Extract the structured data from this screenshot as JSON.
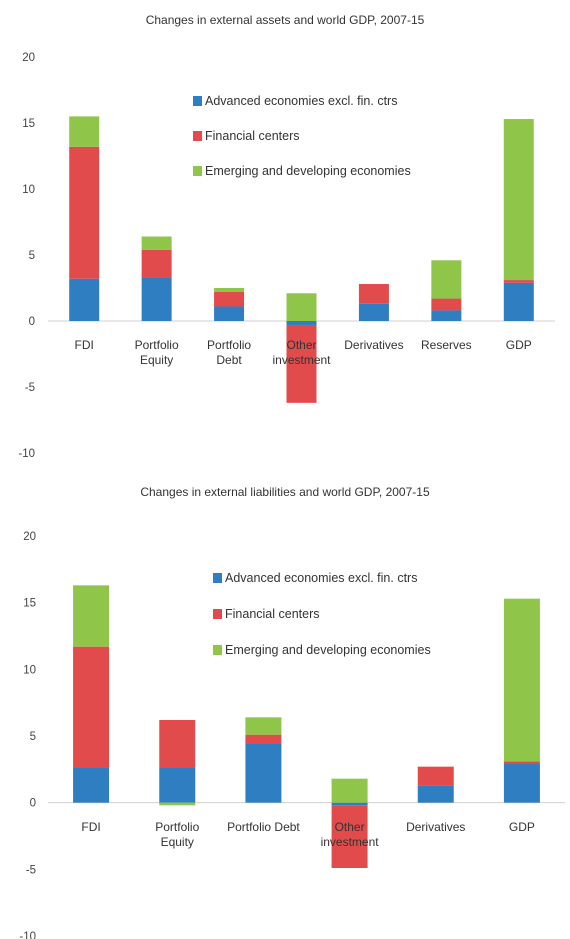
{
  "chart_data": [
    {
      "type": "bar",
      "stacked": true,
      "title": "Changes in external assets and world GDP, 2007-15",
      "categories": [
        "FDI",
        "Portfolio Equity",
        "Portfolio Debt",
        "Other investment",
        "Derivatives",
        "Reserves",
        "GDP"
      ],
      "category_lines": [
        [
          "FDI"
        ],
        [
          "Portfolio",
          "Equity"
        ],
        [
          "Portfolio",
          "Debt"
        ],
        [
          "Other",
          "investment"
        ],
        [
          "Derivatives"
        ],
        [
          "Reserves"
        ],
        [
          "GDP"
        ]
      ],
      "ylim": [
        -10,
        20
      ],
      "yticks": [
        20,
        15,
        10,
        5,
        0,
        -5,
        -10
      ],
      "grid": false,
      "legend_position": "top-center",
      "series": [
        {
          "name": "Advanced economies excl. fin. ctrs",
          "color": "#2e7ec1",
          "values": [
            3.2,
            3.3,
            1.1,
            -0.3,
            1.3,
            0.8,
            2.9
          ]
        },
        {
          "name": "Financial centers",
          "color": "#e14b4b",
          "values": [
            10.0,
            2.1,
            1.1,
            -5.9,
            1.5,
            0.9,
            0.2
          ]
        },
        {
          "name": "Emerging and developing economies",
          "color": "#8fc549",
          "values": [
            2.3,
            1.0,
            0.3,
            2.1,
            0.0,
            2.9,
            12.2
          ]
        }
      ]
    },
    {
      "type": "bar",
      "stacked": true,
      "title": "Changes in external liabilities and world GDP, 2007-15",
      "categories": [
        "FDI",
        "Portfolio Equity",
        "Portfolio Debt",
        "Other investment",
        "Derivatives",
        "GDP"
      ],
      "category_lines": [
        [
          "FDI"
        ],
        [
          "Portfolio",
          "Equity"
        ],
        [
          "Portfolio Debt"
        ],
        [
          "Other",
          "investment"
        ],
        [
          "Derivatives"
        ],
        [
          "GDP"
        ]
      ],
      "ylim": [
        -10,
        20
      ],
      "yticks": [
        20,
        15,
        10,
        5,
        0,
        -5,
        -10
      ],
      "grid": false,
      "legend_position": "top-center",
      "series": [
        {
          "name": "Advanced economies excl. fin. ctrs",
          "color": "#2e7ec1",
          "values": [
            2.6,
            2.6,
            4.4,
            -0.2,
            1.3,
            2.9
          ]
        },
        {
          "name": "Financial centers",
          "color": "#e14b4b",
          "values": [
            9.1,
            3.6,
            0.7,
            -4.7,
            1.4,
            0.2
          ]
        },
        {
          "name": "Emerging and developing economies",
          "color": "#8fc549",
          "values": [
            4.6,
            -0.2,
            1.3,
            1.8,
            0.0,
            12.2
          ]
        }
      ]
    }
  ]
}
